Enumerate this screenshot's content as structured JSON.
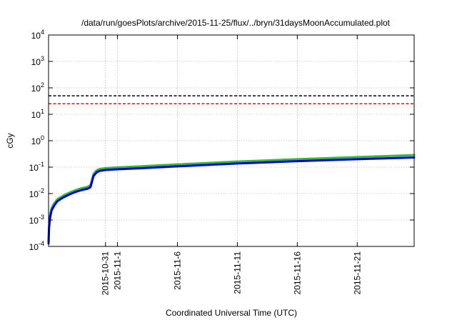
{
  "chart_data": {
    "type": "line",
    "title": "/data/run/goesPlots/archive/2015-11-25/flux/../bryn/31daysMoonAccumulated.plot",
    "xlabel": "Coordinated Universal Time (UTC)",
    "ylabel": "cGy",
    "y_scale": "log",
    "ylim": [
      0.0001,
      10000
    ],
    "y_ticks": [
      {
        "value": 0.0001,
        "label": "10-4",
        "base": "10",
        "exp": "-4"
      },
      {
        "value": 0.001,
        "label": "10-3",
        "base": "10",
        "exp": "-3"
      },
      {
        "value": 0.01,
        "label": "10-2",
        "base": "10",
        "exp": "-2"
      },
      {
        "value": 0.1,
        "label": "10-1",
        "base": "10",
        "exp": "-1"
      },
      {
        "value": 1,
        "label": "100",
        "base": "10",
        "exp": "0"
      },
      {
        "value": 10,
        "label": "101",
        "base": "10",
        "exp": "1"
      },
      {
        "value": 100,
        "label": "102",
        "base": "10",
        "exp": "2"
      },
      {
        "value": 1000,
        "label": "103",
        "base": "10",
        "exp": "3"
      },
      {
        "value": 10000,
        "label": "104",
        "base": "10",
        "exp": "4"
      }
    ],
    "xlim": [
      "2015-10-26 06:00",
      "2015-11-25 18:00"
    ],
    "x_ticks": [
      {
        "value": "2015-10-31",
        "label": "2015-10-31"
      },
      {
        "value": "2015-11-01",
        "label": "2015-11-1"
      },
      {
        "value": "2015-11-06",
        "label": "2015-11-6"
      },
      {
        "value": "2015-11-11",
        "label": "2015-11-11"
      },
      {
        "value": "2015-11-16",
        "label": "2015-11-16"
      },
      {
        "value": "2015-11-21",
        "label": "2015-11-21"
      }
    ],
    "grid": true,
    "reference_lines": [
      {
        "value": 50,
        "color": "#000000",
        "style": "dashed"
      },
      {
        "value": 25,
        "color": "#ff0000",
        "style": "dashed"
      }
    ],
    "series": [
      {
        "color": "#33bb33",
        "x": [
          "2015-10-26 06:00",
          "2015-10-26 07:00",
          "2015-10-26 09:00",
          "2015-10-26 12:00",
          "2015-10-26 18:00",
          "2015-10-27 00:00",
          "2015-10-27 12:00",
          "2015-10-28 00:00",
          "2015-10-28 12:00",
          "2015-10-29 00:00",
          "2015-10-29 12:00",
          "2015-10-29 18:00",
          "2015-10-30 00:00",
          "2015-10-30 06:00",
          "2015-10-30 12:00",
          "2015-10-31 00:00",
          "2015-11-01 00:00",
          "2015-11-03 00:00",
          "2015-11-06 00:00",
          "2015-11-11 00:00",
          "2015-11-16 00:00",
          "2015-11-21 00:00",
          "2015-11-25 18:00"
        ],
        "y": [
          0.00016,
          0.0006,
          0.0015,
          0.0028,
          0.0045,
          0.0062,
          0.0085,
          0.011,
          0.0135,
          0.016,
          0.018,
          0.021,
          0.055,
          0.075,
          0.085,
          0.092,
          0.098,
          0.108,
          0.127,
          0.163,
          0.2,
          0.24,
          0.285
        ]
      },
      {
        "color": "#0000dd",
        "x": [
          "2015-10-26 06:00",
          "2015-10-26 07:00",
          "2015-10-26 09:00",
          "2015-10-26 12:00",
          "2015-10-26 18:00",
          "2015-10-27 00:00",
          "2015-10-27 12:00",
          "2015-10-28 00:00",
          "2015-10-28 12:00",
          "2015-10-29 00:00",
          "2015-10-29 12:00",
          "2015-10-29 18:00",
          "2015-10-30 00:00",
          "2015-10-30 06:00",
          "2015-10-30 12:00",
          "2015-10-31 00:00",
          "2015-11-01 00:00",
          "2015-11-03 00:00",
          "2015-11-06 00:00",
          "2015-11-11 00:00",
          "2015-11-16 00:00",
          "2015-11-21 00:00",
          "2015-11-25 18:00"
        ],
        "y": [
          0.00013,
          0.0005,
          0.0012,
          0.0023,
          0.0037,
          0.0052,
          0.0072,
          0.0093,
          0.0115,
          0.0135,
          0.0152,
          0.0175,
          0.046,
          0.063,
          0.072,
          0.078,
          0.083,
          0.091,
          0.107,
          0.138,
          0.168,
          0.2,
          0.232
        ]
      }
    ]
  }
}
